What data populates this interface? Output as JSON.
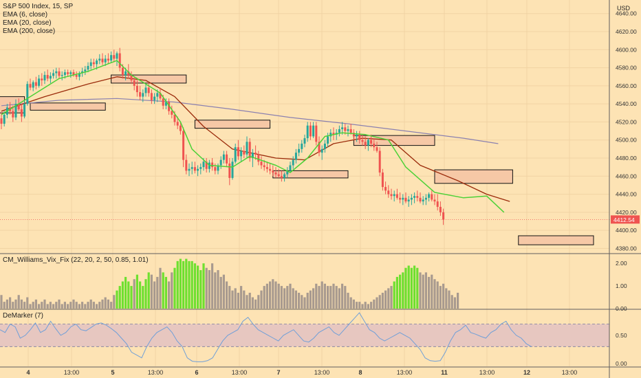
{
  "header": {
    "symbol_line": "S&P 500 Index, 15, SP",
    "indicators": [
      "EMA (6, close)",
      "EMA (20, close)",
      "EMA (200, close)"
    ],
    "currency": "USD"
  },
  "price_panel": {
    "y_ticks": [
      "4640.00",
      "4620.00",
      "4600.00",
      "4580.00",
      "4560.00",
      "4540.00",
      "4520.00",
      "4500.00",
      "4480.00",
      "4460.00",
      "4440.00",
      "4420.00",
      "4400.00",
      "4380.00"
    ],
    "last_price_label": "4412.54",
    "colors": {
      "up": "#26a69a",
      "down": "#ef5350",
      "ema_fast": "#4cd137",
      "ema_mid": "#9a2a0a",
      "ema_slow": "#8a80b0",
      "box_fill": "#f6c8a6",
      "last_price": "#ef5350"
    }
  },
  "vix_panel": {
    "label": "CM_Williams_Vix_Fix (22, 20, 2, 50, 0.85, 1.01)",
    "y_ticks": [
      "2.00",
      "1.00",
      "0.00"
    ],
    "colors": {
      "normal": "#a89a8f",
      "spike": "#6ee02f"
    }
  },
  "demarker_panel": {
    "label": "DeMarker (7)",
    "y_ticks": [
      "0.50",
      "0.00"
    ],
    "colors": {
      "line": "#6f9fd8",
      "band": "#e7c7c0"
    }
  },
  "x_axis": {
    "labels": [
      "4",
      "13:00",
      "5",
      "13:00",
      "6",
      "13:00",
      "7",
      "13:00",
      "8",
      "13:00",
      "11",
      "13:00",
      "12",
      "13:00"
    ]
  },
  "chart_data": {
    "type": "candlestick",
    "price_ylim": [
      4375,
      4655
    ],
    "bar_count": 190,
    "ohlc": [
      [
        4524,
        4530,
        4512,
        4518
      ],
      [
        4518,
        4532,
        4515,
        4528
      ],
      [
        4528,
        4540,
        4524,
        4536
      ],
      [
        4536,
        4542,
        4528,
        4532
      ],
      [
        4532,
        4538,
        4520,
        4525
      ],
      [
        4525,
        4545,
        4522,
        4540
      ],
      [
        4540,
        4546,
        4532,
        4534
      ],
      [
        4534,
        4540,
        4520,
        4526
      ],
      [
        4526,
        4544,
        4524,
        4540
      ],
      [
        4540,
        4565,
        4538,
        4562
      ],
      [
        4562,
        4568,
        4555,
        4558
      ],
      [
        4558,
        4566,
        4554,
        4564
      ],
      [
        4564,
        4570,
        4556,
        4560
      ],
      [
        4560,
        4572,
        4558,
        4568
      ],
      [
        4568,
        4574,
        4560,
        4566
      ],
      [
        4566,
        4576,
        4562,
        4572
      ],
      [
        4572,
        4578,
        4565,
        4568
      ],
      [
        4568,
        4575,
        4563,
        4571
      ],
      [
        4571,
        4578,
        4568,
        4574
      ],
      [
        4574,
        4580,
        4568,
        4576
      ],
      [
        4576,
        4580,
        4568,
        4571
      ],
      [
        4571,
        4576,
        4566,
        4572
      ],
      [
        4572,
        4578,
        4568,
        4575
      ],
      [
        4575,
        4578,
        4570,
        4573
      ],
      [
        4573,
        4577,
        4569,
        4575
      ],
      [
        4575,
        4578,
        4570,
        4572
      ],
      [
        4572,
        4576,
        4567,
        4570
      ],
      [
        4570,
        4576,
        4566,
        4574
      ],
      [
        4574,
        4580,
        4570,
        4576
      ],
      [
        4576,
        4582,
        4572,
        4578
      ],
      [
        4578,
        4586,
        4575,
        4582
      ],
      [
        4582,
        4590,
        4578,
        4586
      ],
      [
        4586,
        4590,
        4580,
        4584
      ],
      [
        4584,
        4590,
        4578,
        4588
      ],
      [
        4588,
        4595,
        4584,
        4590
      ],
      [
        4590,
        4596,
        4583,
        4586
      ],
      [
        4586,
        4594,
        4582,
        4590
      ],
      [
        4590,
        4596,
        4584,
        4588
      ],
      [
        4588,
        4598,
        4586,
        4594
      ],
      [
        4594,
        4600,
        4586,
        4590
      ],
      [
        4590,
        4598,
        4582,
        4596
      ],
      [
        4596,
        4602,
        4576,
        4580
      ],
      [
        4580,
        4584,
        4568,
        4572
      ],
      [
        4572,
        4580,
        4566,
        4576
      ],
      [
        4576,
        4584,
        4568,
        4572
      ],
      [
        4572,
        4576,
        4562,
        4566
      ],
      [
        4566,
        4570,
        4555,
        4560
      ],
      [
        4560,
        4566,
        4548,
        4553
      ],
      [
        4553,
        4560,
        4544,
        4548
      ],
      [
        4548,
        4556,
        4542,
        4552
      ],
      [
        4552,
        4562,
        4548,
        4558
      ],
      [
        4558,
        4564,
        4548,
        4552
      ],
      [
        4552,
        4556,
        4540,
        4544
      ],
      [
        4544,
        4552,
        4540,
        4548
      ],
      [
        4548,
        4556,
        4542,
        4552
      ],
      [
        4552,
        4558,
        4544,
        4546
      ],
      [
        4546,
        4550,
        4534,
        4538
      ],
      [
        4538,
        4546,
        4534,
        4542
      ],
      [
        4542,
        4546,
        4528,
        4532
      ],
      [
        4532,
        4538,
        4524,
        4528
      ],
      [
        4528,
        4532,
        4516,
        4520
      ],
      [
        4520,
        4526,
        4512,
        4516
      ],
      [
        4516,
        4520,
        4506,
        4510
      ],
      [
        4510,
        4514,
        4470,
        4478
      ],
      [
        4478,
        4484,
        4462,
        4466
      ],
      [
        4466,
        4474,
        4460,
        4468
      ],
      [
        4468,
        4476,
        4462,
        4470
      ],
      [
        4470,
        4476,
        4463,
        4466
      ],
      [
        4466,
        4472,
        4460,
        4468
      ],
      [
        4468,
        4474,
        4462,
        4470
      ],
      [
        4470,
        4480,
        4466,
        4476
      ],
      [
        4476,
        4480,
        4464,
        4468
      ],
      [
        4468,
        4478,
        4464,
        4475
      ],
      [
        4475,
        4480,
        4466,
        4470
      ],
      [
        4470,
        4474,
        4462,
        4466
      ],
      [
        4466,
        4474,
        4462,
        4472
      ],
      [
        4472,
        4482,
        4468,
        4478
      ],
      [
        4478,
        4488,
        4474,
        4484
      ],
      [
        4484,
        4488,
        4470,
        4474
      ],
      [
        4474,
        4480,
        4450,
        4458
      ],
      [
        4458,
        4480,
        4456,
        4476
      ],
      [
        4476,
        4496,
        4474,
        4492
      ],
      [
        4492,
        4500,
        4478,
        4482
      ],
      [
        4482,
        4492,
        4476,
        4488
      ],
      [
        4488,
        4494,
        4480,
        4484
      ],
      [
        4484,
        4504,
        4480,
        4498
      ],
      [
        4498,
        4502,
        4476,
        4480
      ],
      [
        4480,
        4490,
        4470,
        4486
      ],
      [
        4486,
        4494,
        4478,
        4484
      ],
      [
        4484,
        4488,
        4472,
        4476
      ],
      [
        4476,
        4482,
        4468,
        4472
      ],
      [
        4472,
        4478,
        4466,
        4470
      ],
      [
        4470,
        4476,
        4464,
        4468
      ],
      [
        4468,
        4474,
        4462,
        4466
      ],
      [
        4466,
        4472,
        4460,
        4464
      ],
      [
        4464,
        4470,
        4458,
        4462
      ],
      [
        4462,
        4468,
        4458,
        4460
      ],
      [
        4460,
        4466,
        4454,
        4458
      ],
      [
        4458,
        4464,
        4454,
        4462
      ],
      [
        4462,
        4470,
        4458,
        4466
      ],
      [
        4466,
        4476,
        4464,
        4472
      ],
      [
        4472,
        4482,
        4468,
        4478
      ],
      [
        4478,
        4490,
        4474,
        4486
      ],
      [
        4486,
        4496,
        4482,
        4490
      ],
      [
        4490,
        4500,
        4486,
        4496
      ],
      [
        4496,
        4506,
        4492,
        4502
      ],
      [
        4502,
        4520,
        4498,
        4516
      ],
      [
        4516,
        4520,
        4500,
        4504
      ],
      [
        4504,
        4520,
        4502,
        4516
      ],
      [
        4516,
        4520,
        4494,
        4498
      ],
      [
        4498,
        4504,
        4482,
        4486
      ],
      [
        4486,
        4494,
        4478,
        4490
      ],
      [
        4490,
        4500,
        4486,
        4496
      ],
      [
        4496,
        4508,
        4492,
        4504
      ],
      [
        4504,
        4512,
        4498,
        4508
      ],
      [
        4508,
        4514,
        4500,
        4506
      ],
      [
        4506,
        4512,
        4500,
        4508
      ],
      [
        4508,
        4516,
        4504,
        4512
      ],
      [
        4512,
        4520,
        4506,
        4514
      ],
      [
        4514,
        4518,
        4506,
        4510
      ],
      [
        4510,
        4516,
        4504,
        4512
      ],
      [
        4512,
        4518,
        4506,
        4508
      ],
      [
        4508,
        4512,
        4500,
        4504
      ],
      [
        4504,
        4510,
        4498,
        4506
      ],
      [
        4506,
        4510,
        4496,
        4500
      ],
      [
        4500,
        4506,
        4494,
        4498
      ],
      [
        4498,
        4504,
        4490,
        4494
      ],
      [
        4494,
        4502,
        4488,
        4500
      ],
      [
        4500,
        4506,
        4492,
        4496
      ],
      [
        4496,
        4502,
        4488,
        4492
      ],
      [
        4492,
        4498,
        4486,
        4488
      ],
      [
        4488,
        4492,
        4460,
        4464
      ],
      [
        4464,
        4468,
        4444,
        4448
      ],
      [
        4448,
        4454,
        4440,
        4444
      ],
      [
        4444,
        4450,
        4436,
        4440
      ],
      [
        4440,
        4446,
        4434,
        4438
      ],
      [
        4438,
        4444,
        4432,
        4440
      ],
      [
        4440,
        4446,
        4434,
        4436
      ],
      [
        4436,
        4442,
        4430,
        4434
      ],
      [
        4434,
        4440,
        4428,
        4436
      ],
      [
        4436,
        4442,
        4430,
        4432
      ],
      [
        4432,
        4438,
        4426,
        4434
      ],
      [
        4434,
        4440,
        4428,
        4436
      ],
      [
        4436,
        4442,
        4430,
        4438
      ],
      [
        4438,
        4444,
        4432,
        4436
      ],
      [
        4436,
        4442,
        4430,
        4432
      ],
      [
        4432,
        4438,
        4428,
        4434
      ],
      [
        4434,
        4440,
        4428,
        4436
      ],
      [
        4436,
        4442,
        4432,
        4440
      ],
      [
        4440,
        4444,
        4432,
        4434
      ],
      [
        4434,
        4440,
        4428,
        4432
      ],
      [
        4432,
        4440,
        4422,
        4426
      ],
      [
        4426,
        4432,
        4416,
        4420
      ],
      [
        4420,
        4424,
        4406,
        4412
      ]
    ],
    "ema_6": [
      [
        0,
        4528
      ],
      [
        10,
        4548
      ],
      [
        20,
        4568
      ],
      [
        30,
        4576
      ],
      [
        40,
        4588
      ],
      [
        45,
        4572
      ],
      [
        55,
        4552
      ],
      [
        62,
        4520
      ],
      [
        66,
        4490
      ],
      [
        72,
        4472
      ],
      [
        80,
        4470
      ],
      [
        86,
        4482
      ],
      [
        95,
        4472
      ],
      [
        100,
        4464
      ],
      [
        106,
        4480
      ],
      [
        112,
        4504
      ],
      [
        118,
        4508
      ],
      [
        126,
        4506
      ],
      [
        134,
        4500
      ],
      [
        140,
        4470
      ],
      [
        150,
        4442
      ],
      [
        160,
        4436
      ],
      [
        168,
        4438
      ],
      [
        174,
        4420
      ]
    ],
    "ema_20": [
      [
        0,
        4532
      ],
      [
        15,
        4548
      ],
      [
        30,
        4562
      ],
      [
        40,
        4570
      ],
      [
        50,
        4566
      ],
      [
        60,
        4548
      ],
      [
        70,
        4515
      ],
      [
        80,
        4490
      ],
      [
        95,
        4480
      ],
      [
        105,
        4478
      ],
      [
        115,
        4496
      ],
      [
        125,
        4502
      ],
      [
        135,
        4500
      ],
      [
        145,
        4472
      ],
      [
        158,
        4455
      ],
      [
        168,
        4440
      ],
      [
        176,
        4432
      ]
    ],
    "ema_200": [
      [
        0,
        4538
      ],
      [
        20,
        4544
      ],
      [
        40,
        4546
      ],
      [
        60,
        4542
      ],
      [
        80,
        4534
      ],
      [
        100,
        4525
      ],
      [
        120,
        4518
      ],
      [
        140,
        4510
      ],
      [
        160,
        4502
      ],
      [
        172,
        4496
      ]
    ],
    "boxes": [
      [
        -2,
        4548,
        8,
        4530
      ],
      [
        10,
        4541,
        36,
        4533
      ],
      [
        38,
        4572,
        64,
        4563
      ],
      [
        67,
        4522,
        93,
        4513
      ],
      [
        94,
        4466,
        120,
        4458
      ],
      [
        122,
        4505,
        150,
        4494
      ],
      [
        150,
        4467,
        177,
        4452
      ],
      [
        179,
        4394,
        205,
        4384
      ]
    ],
    "vix_ylim": [
      0,
      2.4
    ],
    "vix": [
      0.6,
      0.3,
      0.4,
      0.5,
      0.3,
      0.4,
      0.6,
      0.4,
      0.3,
      0.5,
      0.2,
      0.3,
      0.4,
      0.2,
      0.3,
      0.4,
      0.2,
      0.3,
      0.2,
      0.3,
      0.4,
      0.2,
      0.3,
      0.2,
      0.3,
      0.4,
      0.3,
      0.2,
      0.3,
      0.2,
      0.3,
      0.4,
      0.3,
      0.2,
      0.3,
      0.4,
      0.5,
      0.4,
      0.3,
      0.6,
      0.8,
      1.0,
      1.2,
      1.4,
      1.2,
      1.0,
      1.3,
      1.5,
      1.2,
      1.0,
      1.3,
      1.6,
      1.5,
      1.2,
      1.4,
      1.8,
      1.6,
      1.4,
      1.2,
      1.6,
      1.8,
      2.1,
      2.2,
      2.1,
      2.2,
      2.1,
      2.1,
      2.0,
      1.9,
      1.7,
      2.0,
      1.8,
      1.7,
      2.0,
      1.6,
      1.7,
      1.4,
      1.5,
      1.2,
      1.0,
      0.8,
      0.9,
      0.7,
      1.0,
      0.8,
      0.6,
      0.7,
      0.5,
      0.4,
      0.6,
      0.8,
      1.0,
      1.1,
      1.2,
      1.3,
      1.2,
      1.1,
      1.0,
      0.9,
      1.0,
      1.1,
      0.9,
      0.8,
      0.7,
      0.6,
      0.5,
      0.7,
      0.8,
      0.9,
      1.1,
      1.0,
      1.2,
      1.1,
      1.0,
      1.0,
      1.1,
      1.0,
      0.9,
      1.1,
      1.0,
      0.7,
      0.5,
      0.4,
      0.3,
      0.3,
      0.2,
      0.3,
      0.2,
      0.3,
      0.4,
      0.5,
      0.6,
      0.7,
      0.8,
      0.9,
      1.0,
      1.2,
      1.4,
      1.5,
      1.6,
      1.8,
      1.9,
      1.8,
      1.9,
      1.8,
      1.6,
      1.5,
      1.6,
      1.4,
      1.5,
      1.3,
      1.2,
      1.0,
      1.1,
      0.9,
      0.8,
      0.6,
      0.5,
      0.7
    ],
    "vix_spike_ranges": [
      [
        40,
        45
      ],
      [
        47,
        51
      ],
      [
        56,
        57
      ],
      [
        60,
        70
      ],
      [
        136,
        144
      ]
    ],
    "demarker_ylim": [
      -0.05,
      0.95
    ],
    "demarker_band": [
      0.3,
      0.7
    ],
    "demarker": [
      0.6,
      0.55,
      0.7,
      0.65,
      0.45,
      0.5,
      0.6,
      0.72,
      0.55,
      0.6,
      0.75,
      0.62,
      0.5,
      0.55,
      0.65,
      0.7,
      0.6,
      0.58,
      0.64,
      0.7,
      0.72,
      0.68,
      0.62,
      0.55,
      0.45,
      0.35,
      0.2,
      0.15,
      0.1,
      0.3,
      0.45,
      0.55,
      0.6,
      0.65,
      0.55,
      0.4,
      0.3,
      0.1,
      0.04,
      0.03,
      0.03,
      0.05,
      0.1,
      0.25,
      0.4,
      0.5,
      0.55,
      0.6,
      0.75,
      0.82,
      0.7,
      0.6,
      0.55,
      0.5,
      0.45,
      0.4,
      0.5,
      0.55,
      0.6,
      0.5,
      0.4,
      0.38,
      0.45,
      0.55,
      0.6,
      0.65,
      0.55,
      0.5,
      0.6,
      0.7,
      0.8,
      0.9,
      0.75,
      0.6,
      0.55,
      0.45,
      0.4,
      0.45,
      0.5,
      0.55,
      0.5,
      0.45,
      0.35,
      0.25,
      0.1,
      0.05,
      0.04,
      0.05,
      0.2,
      0.4,
      0.55,
      0.6,
      0.68,
      0.55,
      0.52,
      0.48,
      0.45,
      0.55,
      0.6,
      0.7,
      0.75,
      0.6,
      0.5,
      0.45,
      0.35,
      0.3
    ]
  }
}
